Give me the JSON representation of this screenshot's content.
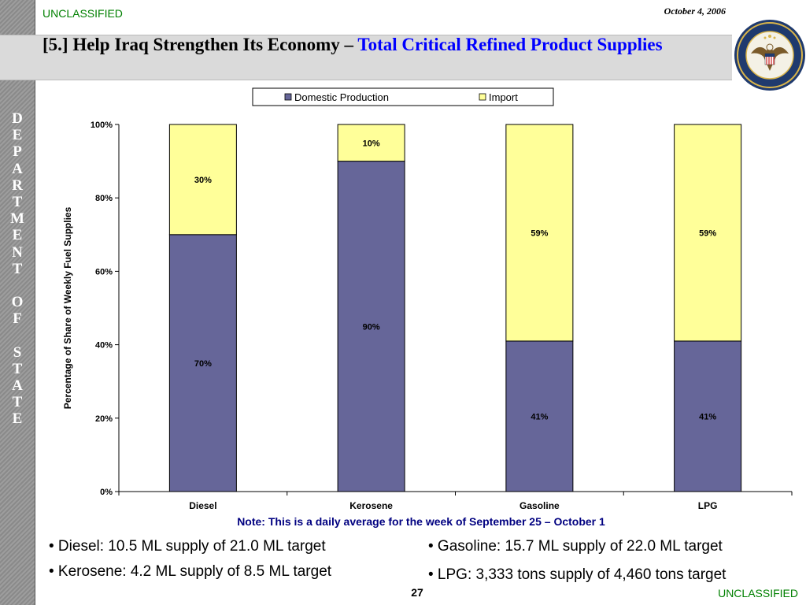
{
  "slide": {
    "classification_top": "UNCLASSIFIED",
    "classification_bottom": "UNCLASSIFIED",
    "date": "October 4, 2006",
    "title_main": "[5.] Help Iraq Strengthen Its Economy – ",
    "title_accent": "Total Critical Refined Product Supplies",
    "sidebar_letters": [
      "D",
      "E",
      "P",
      "A",
      "R",
      "T",
      "M",
      "E",
      "N",
      "T",
      "",
      "O",
      "F",
      "",
      "S",
      "T",
      "A",
      "T",
      "E"
    ],
    "seal_icon": "department-of-state-seal-icon",
    "page_number": "27",
    "note": "Note: This is a daily average for the week of September 25 – October 1",
    "bullets_left": [
      "• Diesel: 10.5 ML supply of 21.0 ML target",
      "• Kerosene: 4.2 ML supply of 8.5 ML target"
    ],
    "bullets_right": [
      "• Gasoline: 15.7 ML supply of 22.0 ML target",
      "• LPG: 3,333 tons supply of 4,460 tons target"
    ],
    "colors": {
      "classification": "#008000",
      "title_accent": "#0000ff",
      "note": "#000080",
      "domestic": "#666699",
      "import": "#ffff99"
    }
  },
  "chart_data": {
    "type": "bar",
    "stacked": true,
    "categories": [
      "Diesel",
      "Kerosene",
      "Gasoline",
      "LPG"
    ],
    "series": [
      {
        "name": "Domestic Production",
        "color": "#666699",
        "values": [
          70,
          90,
          41,
          41
        ],
        "labels": [
          "70%",
          "90%",
          "41%",
          "41%"
        ]
      },
      {
        "name": "Import",
        "color": "#ffff99",
        "values": [
          30,
          10,
          59,
          59
        ],
        "labels": [
          "30%",
          "10%",
          "59%",
          "59%"
        ]
      }
    ],
    "ylabel": "Percentage of Share of Weekly Fuel Supplies",
    "ylim": [
      0,
      100
    ],
    "yticks": [
      "0%",
      "20%",
      "40%",
      "60%",
      "80%",
      "100%"
    ],
    "legend_position": "top",
    "grid": false
  }
}
